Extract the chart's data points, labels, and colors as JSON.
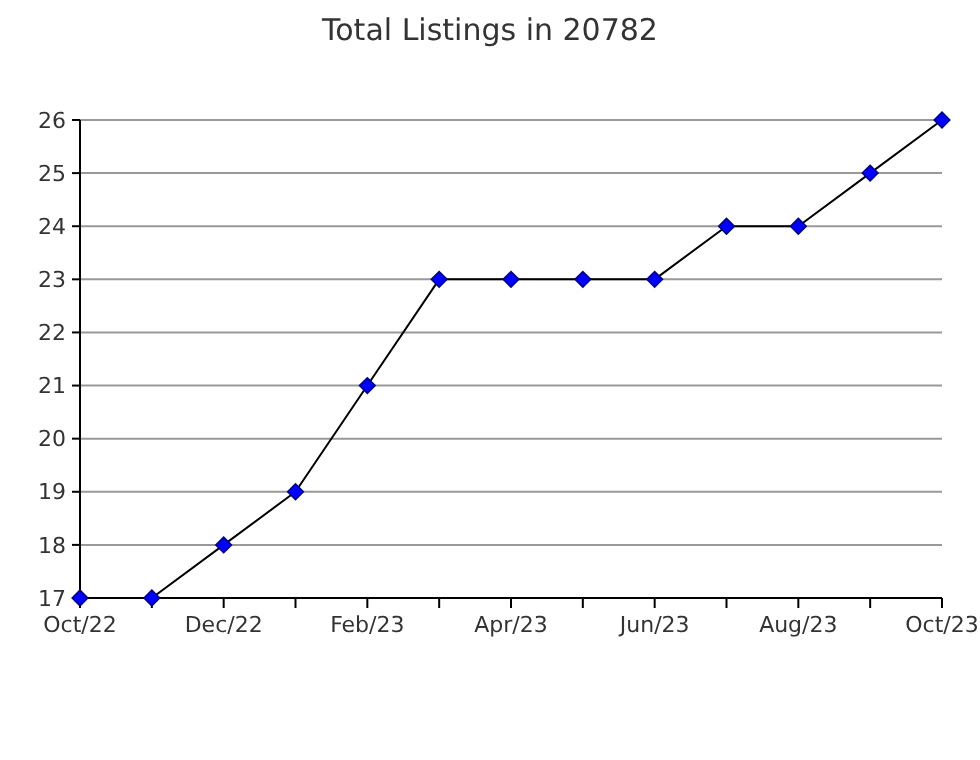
{
  "chart_data": {
    "type": "line",
    "title": "Total Listings in 20782",
    "categories": [
      "Oct/22",
      null,
      "Dec/22",
      null,
      "Feb/23",
      null,
      "Apr/23",
      null,
      "Jun/23",
      null,
      "Aug/23",
      null,
      "Oct/23"
    ],
    "series": [
      {
        "color": "#0000ff",
        "values": [
          17,
          17,
          18,
          19,
          21,
          23,
          23,
          23,
          23,
          24,
          24,
          25,
          26
        ]
      }
    ],
    "ylim": [
      17,
      26
    ],
    "yticks": [
      17,
      18,
      19,
      20,
      21,
      22,
      23,
      24,
      25,
      26
    ],
    "grid": "y",
    "marker": "diamond",
    "line_style": "solid"
  }
}
